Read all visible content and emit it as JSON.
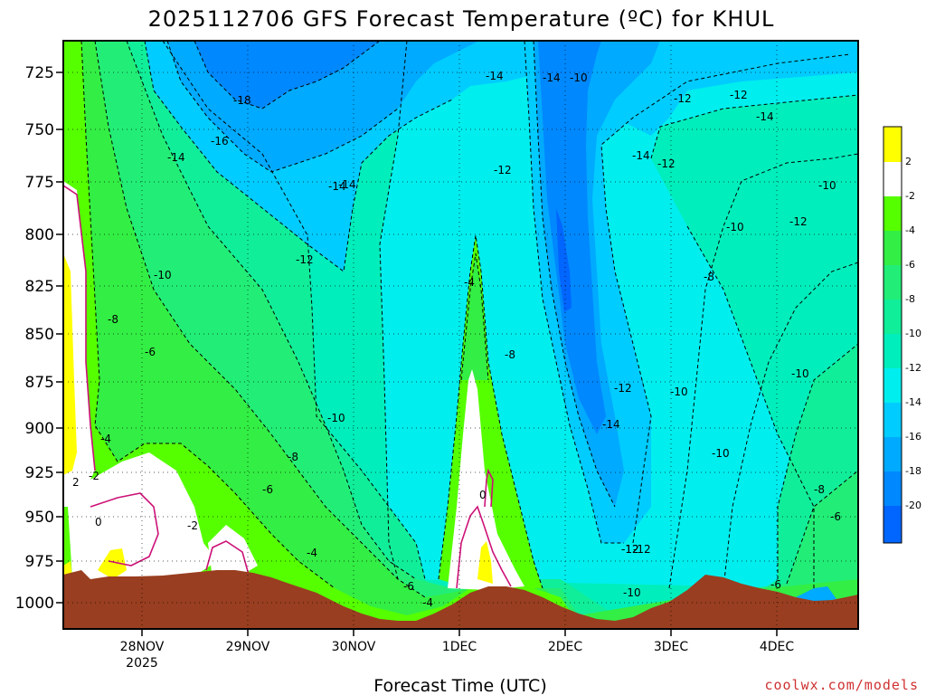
{
  "chart_data": {
    "type": "heatmap",
    "title": "2025112706 GFS Forecast Temperature (ºC) for KHUL",
    "xlabel": "Forecast Time (UTC)",
    "ylabel": "",
    "x_ticks": [
      "28NOV",
      "29NOV",
      "30NOV",
      "1DEC",
      "2DEC",
      "3DEC",
      "4DEC"
    ],
    "x_ticks_sublabel": "2025",
    "y_ticks": [
      725,
      750,
      775,
      800,
      825,
      850,
      875,
      900,
      925,
      950,
      975,
      1000
    ],
    "ylim": [
      1010,
      712
    ],
    "y_unit": "hPa",
    "z_unit": "ºC",
    "grid": true,
    "colorbar": {
      "placement": "right",
      "labels": [
        "2",
        "-2",
        "-4",
        "-6",
        "-8",
        "-10",
        "-12",
        "-14",
        "-16",
        "-18",
        "-20"
      ],
      "levels": [
        {
          "range": "> 2",
          "color": "#ffff00"
        },
        {
          "range": "-2 to 2",
          "color": "#ffffff"
        },
        {
          "range": "-4 to -2",
          "color": "#55ff00"
        },
        {
          "range": "-6 to -4",
          "color": "#33ee44"
        },
        {
          "range": "-8 to -6",
          "color": "#22ee77"
        },
        {
          "range": "-10 to -8",
          "color": "#11ee99"
        },
        {
          "range": "-12 to -10",
          "color": "#00eebb"
        },
        {
          "range": "-14 to -12",
          "color": "#00eeee"
        },
        {
          "range": "-16 to -14",
          "color": "#00ccff"
        },
        {
          "range": "-18 to -16",
          "color": "#00aaff"
        },
        {
          "range": "-20 to -18",
          "color": "#0088ff"
        },
        {
          "range": "< -20",
          "color": "#0066ff"
        }
      ]
    },
    "contour_labels": [
      "-18",
      "-16",
      "-14",
      "-14",
      "-14",
      "-12",
      "-10",
      "-8",
      "-6",
      "-4",
      "2",
      "-2",
      "0",
      "-2",
      "-10",
      "-8",
      "-6",
      "-4",
      "-6",
      "-4",
      "-4",
      "0",
      "-8",
      "-12",
      "-14",
      "-12",
      "-14",
      "-12",
      "-12",
      "-14",
      "-12",
      "-10",
      "-8",
      "-14",
      "-12",
      "-12",
      "-10",
      "-12",
      "-10",
      "-10",
      "-10",
      "-8",
      "-6",
      "-6",
      "-12",
      "-10",
      "-14",
      "-10"
    ],
    "surface_color": "#993e20"
  },
  "credit": "coolwx.com/models"
}
